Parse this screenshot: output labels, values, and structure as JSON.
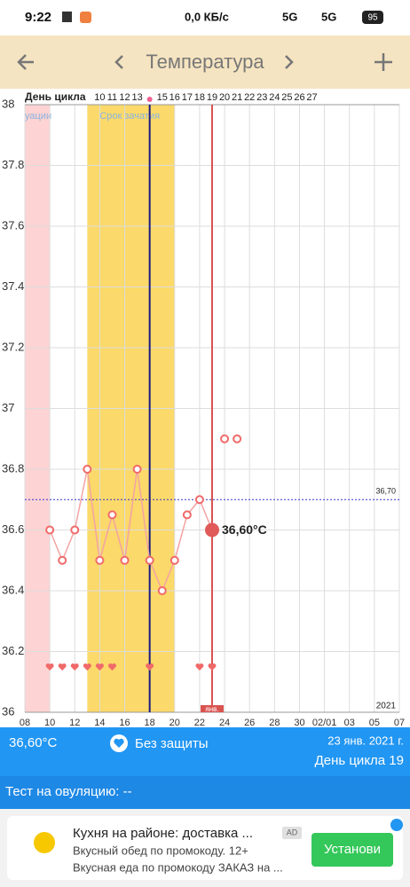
{
  "status_bar": {
    "time": "9:22",
    "network_speed": "0,0 КБ/с",
    "signal_1": "5G",
    "signal_2": "5G",
    "battery": "95"
  },
  "header": {
    "title": "Температура"
  },
  "chart_data": {
    "type": "line",
    "cycle_day_row": {
      "label": "День цикла",
      "x": [
        14,
        15,
        16,
        17,
        18,
        19,
        20,
        21,
        22,
        23,
        24,
        25,
        26,
        27,
        28,
        29,
        30,
        31
      ],
      "days": [
        10,
        11,
        12,
        13,
        null,
        15,
        16,
        17,
        18,
        19,
        20,
        21,
        22,
        23,
        24,
        25,
        26,
        27
      ]
    },
    "series": [
      {
        "x": [
          10,
          11,
          12,
          13,
          14,
          15,
          16,
          17,
          18,
          19,
          20,
          21,
          22,
          23
        ],
        "values": [
          36.6,
          36.5,
          36.6,
          36.8,
          36.5,
          36.65,
          36.5,
          36.8,
          36.5,
          36.4,
          36.5,
          36.65,
          36.7,
          36.6
        ],
        "color": "#f4a3a3",
        "connected": true
      },
      {
        "x": [
          24,
          25
        ],
        "values": [
          36.9,
          36.9
        ],
        "color": "#f4a3a3",
        "connected": false
      }
    ],
    "xlim": [
      8,
      38
    ],
    "xticks": [
      {
        "value": 8,
        "label": "08"
      },
      10,
      12,
      14,
      16,
      18,
      20,
      22,
      24,
      26,
      28,
      30,
      {
        "value": 32,
        "label": "02/01"
      },
      {
        "value": 34,
        "label": "03"
      },
      {
        "value": 36,
        "label": "05"
      },
      {
        "value": 38,
        "label": "07"
      }
    ],
    "ylim": [
      36,
      38
    ],
    "yticks": [
      36,
      36.2,
      36.4,
      36.6,
      36.8,
      37,
      37.2,
      37.4,
      37.6,
      37.8,
      38
    ],
    "grid": true,
    "reference_line": {
      "value": 36.7,
      "label": "36,70",
      "color": "#3333cc"
    },
    "bands": [
      {
        "label": "уации",
        "start": 8,
        "end": 10,
        "color": "#fdd3d3"
      },
      {
        "label": "Срок зачатия",
        "start": 13,
        "end": 20,
        "color": "#fbd96a"
      }
    ],
    "vlines": [
      {
        "x": 18,
        "color": "#1a1a80"
      },
      {
        "x": 23,
        "color": "#d9534f",
        "label": "янв."
      }
    ],
    "hearts_x": [
      10,
      11,
      12,
      13,
      14,
      15,
      18,
      22,
      23
    ],
    "selected": {
      "x": 23,
      "value": 36.6,
      "value_label": "36,60°C"
    },
    "year_label": "2021"
  },
  "summary": {
    "temperature": "36,60°C",
    "protection": "Без защиты",
    "date": "23 янв. 2021 г.",
    "cycle_day": "День цикла 19"
  },
  "ovulation_test": "Тест на овуляцию: --",
  "ad": {
    "title": "Кухня на районе: доставка ...",
    "badge": "AD",
    "line1": "Вкусный обед по промокоду. 12+",
    "line2": "Вкусная еда по промокоду ЗАКАЗ на ...",
    "button": "Установи"
  }
}
